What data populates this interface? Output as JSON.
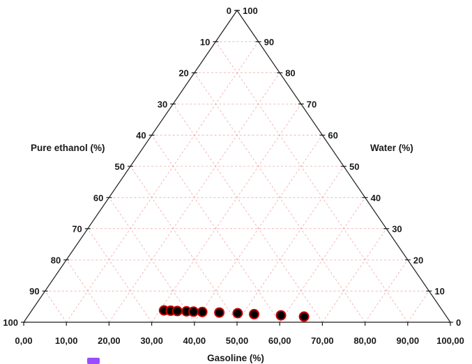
{
  "chart_data": {
    "type": "scatter",
    "plot_kind": "ternary",
    "title": "",
    "axes": {
      "left": {
        "label": "Pure ethanol (%)",
        "ticks": [
          "0",
          "10",
          "20",
          "30",
          "40",
          "50",
          "60",
          "70",
          "80",
          "90",
          "100"
        ]
      },
      "right": {
        "label": "Water (%)",
        "ticks": [
          "100",
          "90",
          "80",
          "70",
          "60",
          "50",
          "40",
          "30",
          "20",
          "10",
          "0"
        ]
      },
      "bottom": {
        "label": "Gasoline (%)",
        "ticks": [
          "0,00",
          "10,00",
          "20,00",
          "30,00",
          "40,00",
          "50,00",
          "60,00",
          "70,00",
          "80,00",
          "90,00",
          "100,00"
        ]
      }
    },
    "grid": true,
    "series": [
      {
        "marker_fill": "#000000",
        "marker_edge": "#cc0000",
        "points": [
          {
            "gasoline": 31.0,
            "water": 3.8,
            "pure_ethanol": 65.2
          },
          {
            "gasoline": 32.6,
            "water": 3.7,
            "pure_ethanol": 63.7
          },
          {
            "gasoline": 34.2,
            "water": 3.6,
            "pure_ethanol": 62.2
          },
          {
            "gasoline": 36.4,
            "water": 3.5,
            "pure_ethanol": 60.1
          },
          {
            "gasoline": 38.1,
            "water": 3.4,
            "pure_ethanol": 58.5
          },
          {
            "gasoline": 40.2,
            "water": 3.3,
            "pure_ethanol": 56.5
          },
          {
            "gasoline": 44.3,
            "water": 3.1,
            "pure_ethanol": 52.6
          },
          {
            "gasoline": 48.7,
            "water": 2.9,
            "pure_ethanol": 48.4
          },
          {
            "gasoline": 52.7,
            "water": 2.6,
            "pure_ethanol": 44.7
          },
          {
            "gasoline": 59.2,
            "water": 2.2,
            "pure_ethanol": 38.6
          },
          {
            "gasoline": 64.8,
            "water": 1.8,
            "pure_ethanol": 33.4
          }
        ]
      }
    ]
  },
  "colors": {
    "frame": "#1a1a1a",
    "grid": "#f2a6a6",
    "marker_fill": "#000000",
    "marker_edge": "#cc0000",
    "badge": "#9a4dff"
  }
}
